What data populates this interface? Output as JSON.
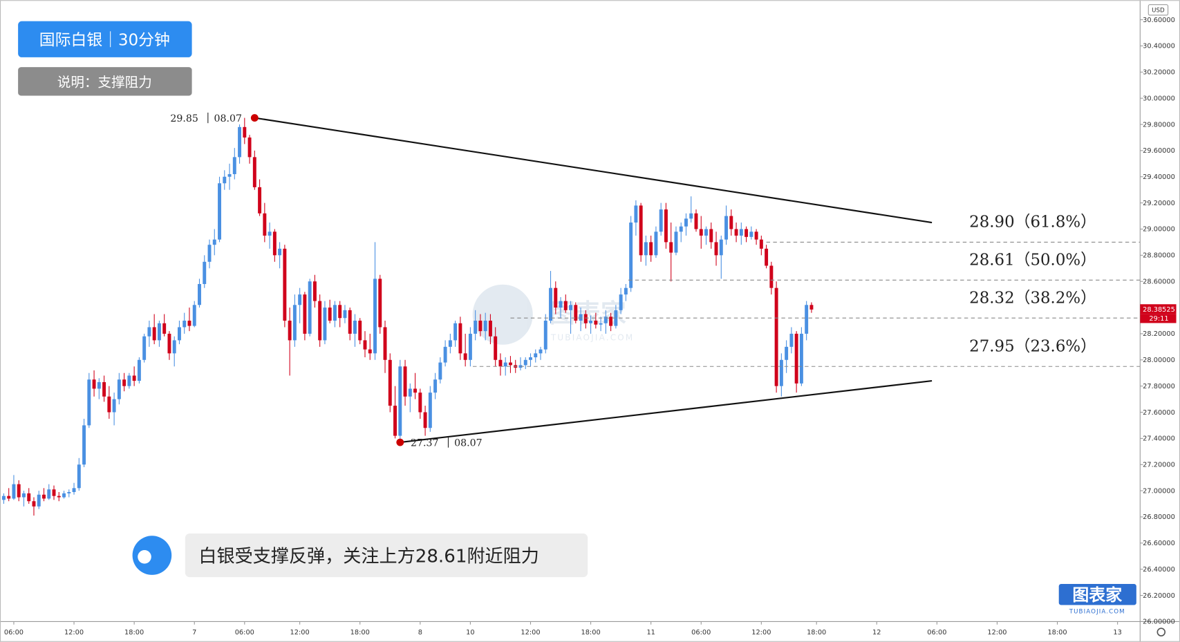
{
  "header": {
    "title": "国际白银｜30分钟",
    "subtitle": "说明：支撑阻力"
  },
  "comment": "白银受支撑反弹，关注上方28.61附近阻力",
  "watermark": {
    "name": "图表家",
    "url": "TUBIAOJIA.COM"
  },
  "chart_data": {
    "type": "candlestick",
    "currency": "USD",
    "up_color": "#4a90e2",
    "down_color": "#d0021b",
    "ylim": [
      26.0,
      30.75
    ],
    "yticks": [
      {
        "value": 26.0,
        "label": "26.00000"
      },
      {
        "value": 26.2,
        "label": "26.20000"
      },
      {
        "value": 26.4,
        "label": "26.40000"
      },
      {
        "value": 26.6,
        "label": "26.60000"
      },
      {
        "value": 26.8,
        "label": "26.80000"
      },
      {
        "value": 27.0,
        "label": "27.00000"
      },
      {
        "value": 27.2,
        "label": "27.20000"
      },
      {
        "value": 27.4,
        "label": "27.40000"
      },
      {
        "value": 27.6,
        "label": "27.60000"
      },
      {
        "value": 27.8,
        "label": "27.80000"
      },
      {
        "value": 28.0,
        "label": "28.00000"
      },
      {
        "value": 28.2,
        "label": "28.20000"
      },
      {
        "value": 28.4,
        "label": "28.40000"
      },
      {
        "value": 28.6,
        "label": "28.60000"
      },
      {
        "value": 28.8,
        "label": "28.80000"
      },
      {
        "value": 29.0,
        "label": "29.00000"
      },
      {
        "value": 29.2,
        "label": "29.20000"
      },
      {
        "value": 29.4,
        "label": "29.40000"
      },
      {
        "value": 29.6,
        "label": "29.60000"
      },
      {
        "value": 29.8,
        "label": "29.80000"
      },
      {
        "value": 30.0,
        "label": "30.00000"
      },
      {
        "value": 30.2,
        "label": "30.20000"
      },
      {
        "value": 30.4,
        "label": "30.40000"
      },
      {
        "value": 30.6,
        "label": "30.60000"
      }
    ],
    "xlim": [
      -0.75,
      226.5
    ],
    "xticks": [
      {
        "value": 2,
        "label": "06:00"
      },
      {
        "value": 14,
        "label": "12:00"
      },
      {
        "value": 26,
        "label": "18:00"
      },
      {
        "value": 38,
        "label": "7"
      },
      {
        "value": 48,
        "label": "06:00"
      },
      {
        "value": 59,
        "label": "12:00"
      },
      {
        "value": 71,
        "label": "18:00"
      },
      {
        "value": 83,
        "label": "8"
      },
      {
        "value": 93,
        "label": "10"
      },
      {
        "value": 105,
        "label": "12:00"
      },
      {
        "value": 117,
        "label": "18:00"
      },
      {
        "value": 129,
        "label": "11"
      },
      {
        "value": 139,
        "label": "06:00"
      },
      {
        "value": 151,
        "label": "12:00"
      },
      {
        "value": 162,
        "label": "18:00"
      },
      {
        "value": 174,
        "label": "12"
      },
      {
        "value": 186,
        "label": "06:00"
      },
      {
        "value": 198,
        "label": "12:00"
      },
      {
        "value": 210,
        "label": "18:00"
      },
      {
        "value": 222,
        "label": "13"
      }
    ],
    "candles": [
      [
        26.93,
        26.98,
        26.9,
        26.96
      ],
      [
        26.96,
        27.02,
        26.92,
        26.94
      ],
      [
        26.94,
        27.12,
        26.93,
        27.05
      ],
      [
        27.05,
        27.08,
        26.92,
        26.95
      ],
      [
        26.95,
        27.0,
        26.88,
        26.98
      ],
      [
        26.98,
        27.02,
        26.9,
        26.92
      ],
      [
        26.92,
        26.95,
        26.81,
        26.88
      ],
      [
        26.88,
        27.0,
        26.86,
        26.97
      ],
      [
        26.97,
        27.02,
        26.92,
        26.94
      ],
      [
        26.94,
        27.05,
        26.93,
        27.01
      ],
      [
        27.01,
        27.04,
        26.93,
        26.96
      ],
      [
        26.96,
        26.99,
        26.92,
        26.95
      ],
      [
        26.95,
        27.0,
        26.94,
        26.98
      ],
      [
        26.98,
        27.01,
        26.95,
        26.99
      ],
      [
        26.99,
        27.06,
        26.97,
        27.02
      ],
      [
        27.02,
        27.25,
        27.0,
        27.2
      ],
      [
        27.2,
        27.55,
        27.18,
        27.5
      ],
      [
        27.5,
        27.9,
        27.48,
        27.85
      ],
      [
        27.85,
        27.92,
        27.72,
        27.78
      ],
      [
        27.78,
        27.86,
        27.7,
        27.83
      ],
      [
        27.83,
        27.88,
        27.68,
        27.72
      ],
      [
        27.72,
        27.8,
        27.55,
        27.6
      ],
      [
        27.6,
        27.75,
        27.5,
        27.7
      ],
      [
        27.7,
        27.9,
        27.66,
        27.85
      ],
      [
        27.85,
        27.9,
        27.76,
        27.8
      ],
      [
        27.8,
        27.9,
        27.78,
        27.88
      ],
      [
        27.88,
        27.95,
        27.8,
        27.84
      ],
      [
        27.84,
        28.02,
        27.82,
        28.0
      ],
      [
        28.0,
        28.2,
        27.98,
        28.18
      ],
      [
        28.18,
        28.3,
        28.1,
        28.25
      ],
      [
        28.25,
        28.35,
        28.12,
        28.15
      ],
      [
        28.15,
        28.3,
        28.1,
        28.28
      ],
      [
        28.28,
        28.35,
        28.18,
        28.2
      ],
      [
        28.2,
        28.22,
        28.0,
        28.05
      ],
      [
        28.05,
        28.18,
        27.95,
        28.15
      ],
      [
        28.15,
        28.3,
        28.12,
        28.25
      ],
      [
        28.25,
        28.36,
        28.2,
        28.3
      ],
      [
        28.3,
        28.4,
        28.22,
        28.26
      ],
      [
        28.26,
        28.45,
        28.25,
        28.42
      ],
      [
        28.42,
        28.62,
        28.4,
        28.58
      ],
      [
        28.58,
        28.8,
        28.55,
        28.75
      ],
      [
        28.75,
        28.92,
        28.7,
        28.88
      ],
      [
        28.88,
        29.0,
        28.8,
        28.92
      ],
      [
        28.92,
        29.4,
        28.9,
        29.35
      ],
      [
        29.35,
        29.45,
        29.3,
        29.4
      ],
      [
        29.4,
        29.5,
        29.3,
        29.42
      ],
      [
        29.42,
        29.62,
        29.38,
        29.55
      ],
      [
        29.55,
        29.8,
        29.5,
        29.78
      ],
      [
        29.78,
        29.85,
        29.65,
        29.7
      ],
      [
        29.7,
        29.72,
        29.5,
        29.55
      ],
      [
        29.55,
        29.6,
        29.3,
        29.32
      ],
      [
        29.32,
        29.38,
        29.1,
        29.12
      ],
      [
        29.12,
        29.2,
        28.9,
        28.95
      ],
      [
        28.95,
        29.05,
        28.85,
        28.98
      ],
      [
        28.98,
        29.0,
        28.75,
        28.8
      ],
      [
        28.8,
        28.9,
        28.7,
        28.85
      ],
      [
        28.85,
        28.88,
        28.25,
        28.3
      ],
      [
        28.3,
        28.4,
        27.88,
        28.15
      ],
      [
        28.15,
        28.5,
        28.1,
        28.42
      ],
      [
        28.42,
        28.55,
        28.28,
        28.5
      ],
      [
        28.5,
        28.52,
        28.15,
        28.2
      ],
      [
        28.2,
        28.62,
        28.18,
        28.6
      ],
      [
        28.6,
        28.65,
        28.4,
        28.45
      ],
      [
        28.45,
        28.5,
        28.1,
        28.15
      ],
      [
        28.15,
        28.45,
        28.12,
        28.4
      ],
      [
        28.4,
        28.46,
        28.28,
        28.3
      ],
      [
        28.3,
        28.45,
        28.25,
        28.42
      ],
      [
        28.42,
        28.45,
        28.25,
        28.32
      ],
      [
        28.32,
        28.42,
        28.28,
        28.38
      ],
      [
        28.38,
        28.4,
        28.15,
        28.2
      ],
      [
        28.2,
        28.35,
        28.1,
        28.3
      ],
      [
        28.3,
        28.32,
        28.12,
        28.15
      ],
      [
        28.15,
        28.22,
        28.02,
        28.08
      ],
      [
        28.08,
        28.2,
        28.0,
        28.05
      ],
      [
        28.05,
        28.9,
        28.0,
        28.62
      ],
      [
        28.62,
        28.65,
        28.2,
        28.25
      ],
      [
        28.25,
        28.3,
        27.9,
        28.0
      ],
      [
        28.0,
        28.05,
        27.6,
        27.65
      ],
      [
        27.65,
        27.8,
        27.4,
        27.42
      ],
      [
        27.42,
        28.0,
        27.37,
        27.95
      ],
      [
        27.95,
        28.0,
        27.65,
        27.72
      ],
      [
        27.72,
        27.82,
        27.6,
        27.78
      ],
      [
        27.78,
        27.9,
        27.7,
        27.75
      ],
      [
        27.75,
        27.78,
        27.55,
        27.6
      ],
      [
        27.6,
        27.65,
        27.42,
        27.48
      ],
      [
        27.48,
        27.8,
        27.45,
        27.75
      ],
      [
        27.75,
        27.9,
        27.7,
        27.85
      ],
      [
        27.85,
        28.02,
        27.82,
        27.98
      ],
      [
        27.98,
        28.15,
        27.95,
        28.1
      ],
      [
        28.1,
        28.2,
        28.05,
        28.15
      ],
      [
        28.15,
        28.3,
        28.1,
        28.28
      ],
      [
        28.28,
        28.33,
        28.0,
        28.05
      ],
      [
        28.05,
        28.2,
        27.95,
        28.0
      ],
      [
        28.0,
        28.25,
        27.95,
        28.2
      ],
      [
        28.2,
        28.38,
        28.15,
        28.3
      ],
      [
        28.3,
        28.35,
        28.18,
        28.22
      ],
      [
        28.22,
        28.36,
        28.15,
        28.3
      ],
      [
        28.3,
        28.35,
        28.12,
        28.18
      ],
      [
        28.18,
        28.25,
        27.95,
        28.0
      ],
      [
        28.0,
        28.05,
        27.88,
        27.95
      ],
      [
        27.95,
        28.02,
        27.88,
        27.98
      ],
      [
        27.98,
        28.03,
        27.9,
        27.96
      ],
      [
        27.96,
        28.0,
        27.9,
        27.94
      ],
      [
        27.94,
        28.02,
        27.92,
        27.96
      ],
      [
        27.96,
        28.02,
        27.93,
        28.0
      ],
      [
        28.0,
        28.05,
        27.95,
        28.02
      ],
      [
        28.02,
        28.08,
        27.98,
        28.05
      ],
      [
        28.05,
        28.1,
        28.0,
        28.08
      ],
      [
        28.08,
        28.35,
        28.05,
        28.3
      ],
      [
        28.3,
        28.68,
        28.28,
        28.55
      ],
      [
        28.55,
        28.6,
        28.35,
        28.4
      ],
      [
        28.4,
        28.48,
        28.32,
        28.45
      ],
      [
        28.45,
        28.5,
        28.36,
        28.38
      ],
      [
        28.38,
        28.45,
        28.2,
        28.42
      ],
      [
        28.42,
        28.44,
        28.28,
        28.3
      ],
      [
        28.3,
        28.4,
        28.22,
        28.35
      ],
      [
        28.35,
        28.38,
        28.24,
        28.28
      ],
      [
        28.28,
        28.34,
        28.2,
        28.3
      ],
      [
        28.3,
        28.36,
        28.24,
        28.27
      ],
      [
        28.27,
        28.33,
        28.22,
        28.28
      ],
      [
        28.28,
        28.38,
        28.2,
        28.33
      ],
      [
        28.33,
        28.36,
        28.22,
        28.26
      ],
      [
        28.26,
        28.42,
        28.24,
        28.38
      ],
      [
        28.38,
        28.55,
        28.35,
        28.5
      ],
      [
        28.5,
        28.58,
        28.45,
        28.55
      ],
      [
        28.55,
        29.1,
        28.52,
        29.05
      ],
      [
        29.05,
        29.22,
        28.95,
        29.18
      ],
      [
        29.18,
        29.2,
        28.75,
        28.8
      ],
      [
        28.8,
        28.95,
        28.72,
        28.9
      ],
      [
        28.9,
        28.95,
        28.75,
        28.8
      ],
      [
        28.8,
        29.02,
        28.78,
        28.98
      ],
      [
        28.98,
        29.2,
        28.95,
        29.15
      ],
      [
        29.15,
        29.2,
        28.85,
        28.9
      ],
      [
        28.9,
        29.05,
        28.6,
        28.82
      ],
      [
        28.82,
        29.02,
        28.8,
        28.98
      ],
      [
        28.98,
        29.05,
        28.9,
        29.02
      ],
      [
        29.02,
        29.12,
        28.95,
        29.08
      ],
      [
        29.08,
        29.25,
        29.05,
        29.12
      ],
      [
        29.12,
        29.15,
        28.98,
        29.0
      ],
      [
        29.0,
        29.1,
        28.85,
        28.95
      ],
      [
        28.95,
        29.02,
        28.88,
        29.0
      ],
      [
        29.0,
        29.05,
        28.85,
        28.9
      ],
      [
        28.9,
        28.98,
        28.72,
        28.8
      ],
      [
        28.8,
        28.95,
        28.62,
        28.92
      ],
      [
        28.92,
        29.18,
        28.88,
        29.1
      ],
      [
        29.1,
        29.15,
        28.95,
        29.0
      ],
      [
        29.0,
        29.05,
        28.9,
        28.95
      ],
      [
        28.95,
        29.05,
        28.88,
        29.0
      ],
      [
        29.0,
        29.02,
        28.9,
        28.94
      ],
      [
        28.94,
        29.02,
        28.92,
        28.98
      ],
      [
        28.98,
        29.0,
        28.88,
        28.92
      ],
      [
        28.92,
        28.95,
        28.8,
        28.85
      ],
      [
        28.85,
        28.88,
        28.7,
        28.72
      ],
      [
        28.72,
        28.75,
        28.5,
        28.55
      ],
      [
        28.55,
        28.6,
        27.75,
        27.8
      ],
      [
        27.8,
        28.05,
        27.72,
        28.0
      ],
      [
        28.0,
        28.15,
        27.9,
        28.1
      ],
      [
        28.1,
        28.25,
        28.05,
        28.2
      ],
      [
        28.2,
        28.22,
        27.75,
        27.82
      ],
      [
        27.82,
        28.25,
        27.8,
        28.2
      ],
      [
        28.2,
        28.45,
        28.15,
        28.42
      ],
      [
        28.42,
        28.44,
        28.36,
        28.385
      ]
    ],
    "last_price": 28.38525,
    "countdown": "29:11",
    "trendlines": [
      {
        "from": [
          50,
          29.85
        ],
        "to": [
          185,
          29.05
        ],
        "date_label": "08.07"
      },
      {
        "from": [
          79,
          27.37
        ],
        "to": [
          185,
          27.84
        ],
        "date_label": "08.07"
      }
    ],
    "fib_levels": [
      {
        "value": 28.9,
        "label": "28.90（61.8%）",
        "from": 152
      },
      {
        "value": 28.61,
        "label": "28.61（50.0%）",
        "from": 124.5
      },
      {
        "value": 28.32,
        "label": "28.32（38.2%）",
        "from": 101
      },
      {
        "value": 27.95,
        "label": "27.95（23.6%）",
        "from": 93.5
      }
    ]
  }
}
